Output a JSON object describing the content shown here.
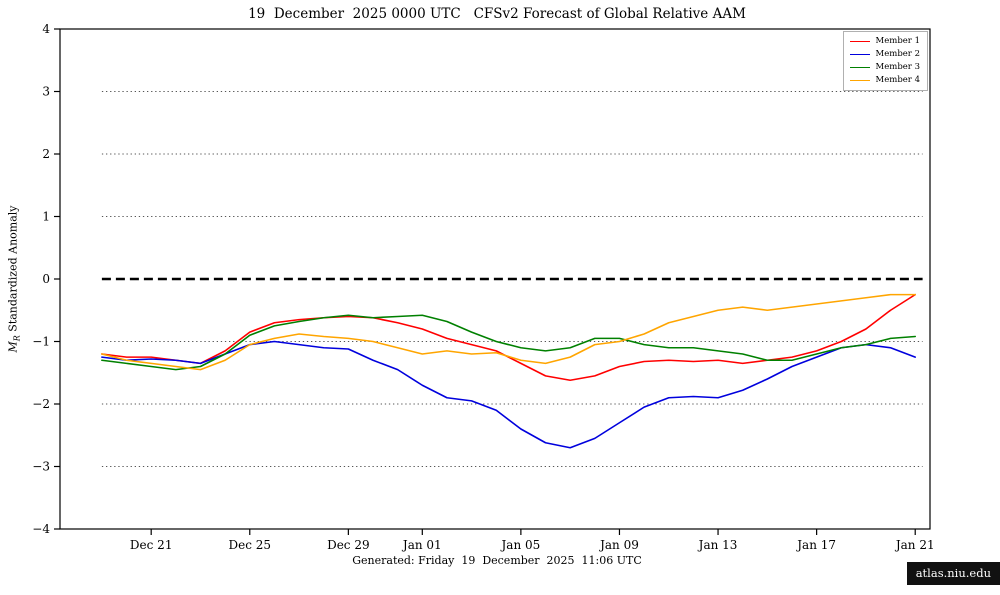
{
  "title": "19  December  2025 0000 UTC   CFSv2 Forecast of Global Relative AAM",
  "ylabel": {
    "prefix": "M",
    "sub": "R",
    "rest": " Standardized Anomaly"
  },
  "footer": "Generated: Friday  19  December  2025  11:06 UTC",
  "badge": "atlas.niu.edu",
  "chart_data": {
    "type": "line",
    "title": "19 December 2025 0000 UTC CFSv2 Forecast of Global Relative AAM",
    "xlabel": "",
    "ylabel": "M_R Standardized Anomaly",
    "ylim": [
      -4,
      4
    ],
    "x_unit": "forecast day (0 = Dec 19)",
    "x_data_range": [
      0,
      33.3
    ],
    "grid": "dotted horizontal at integer anomaly values",
    "legend_position": "upper right",
    "grid_y": [
      -3,
      -2,
      -1,
      1,
      2,
      3
    ],
    "zero_line": 0,
    "y_ticks": [
      {
        "value": -4,
        "label": "−4"
      },
      {
        "value": -3,
        "label": "−3"
      },
      {
        "value": -2,
        "label": "−2"
      },
      {
        "value": -1,
        "label": "−1"
      },
      {
        "value": 0,
        "label": "0"
      },
      {
        "value": 1,
        "label": "1"
      },
      {
        "value": 2,
        "label": "2"
      },
      {
        "value": 3,
        "label": "3"
      },
      {
        "value": 4,
        "label": "4"
      }
    ],
    "x_ticks": [
      {
        "index": 2,
        "label": "Dec 21"
      },
      {
        "index": 6,
        "label": "Dec 25"
      },
      {
        "index": 10,
        "label": "Dec 29"
      },
      {
        "index": 13,
        "label": "Jan 01"
      },
      {
        "index": 17,
        "label": "Jan 05"
      },
      {
        "index": 21,
        "label": "Jan 09"
      },
      {
        "index": 25,
        "label": "Jan 13"
      },
      {
        "index": 29,
        "label": "Jan 17"
      },
      {
        "index": 33,
        "label": "Jan 21"
      }
    ],
    "series": [
      {
        "name": "Member 1",
        "color": "#ff0000",
        "values": [
          -1.2,
          -1.25,
          -1.25,
          -1.3,
          -1.35,
          -1.15,
          -0.85,
          -0.7,
          -0.65,
          -0.62,
          -0.6,
          -0.62,
          -0.7,
          -0.8,
          -0.95,
          -1.05,
          -1.15,
          -1.35,
          -1.55,
          -1.62,
          -1.55,
          -1.4,
          -1.32,
          -1.3,
          -1.32,
          -1.3,
          -1.35,
          -1.3,
          -1.25,
          -1.15,
          -1.0,
          -0.8,
          -0.5,
          -0.25
        ]
      },
      {
        "name": "Member 2",
        "color": "#0000dd",
        "values": [
          -1.25,
          -1.3,
          -1.28,
          -1.3,
          -1.35,
          -1.2,
          -1.05,
          -1.0,
          -1.05,
          -1.1,
          -1.12,
          -1.3,
          -1.45,
          -1.7,
          -1.9,
          -1.95,
          -2.1,
          -2.4,
          -2.62,
          -2.7,
          -2.55,
          -2.3,
          -2.05,
          -1.9,
          -1.88,
          -1.9,
          -1.78,
          -1.6,
          -1.4,
          -1.25,
          -1.1,
          -1.05,
          -1.1,
          -1.25
        ]
      },
      {
        "name": "Member 3",
        "color": "#008000",
        "values": [
          -1.3,
          -1.35,
          -1.4,
          -1.45,
          -1.4,
          -1.2,
          -0.9,
          -0.75,
          -0.68,
          -0.62,
          -0.58,
          -0.62,
          -0.6,
          -0.58,
          -0.68,
          -0.85,
          -1.0,
          -1.1,
          -1.15,
          -1.1,
          -0.95,
          -0.95,
          -1.05,
          -1.1,
          -1.1,
          -1.15,
          -1.2,
          -1.3,
          -1.3,
          -1.2,
          -1.1,
          -1.05,
          -0.95,
          -0.92
        ]
      },
      {
        "name": "Member 4",
        "color": "#ffa500",
        "values": [
          -1.2,
          -1.3,
          -1.35,
          -1.4,
          -1.45,
          -1.3,
          -1.05,
          -0.95,
          -0.88,
          -0.92,
          -0.95,
          -1.0,
          -1.1,
          -1.2,
          -1.15,
          -1.2,
          -1.18,
          -1.3,
          -1.35,
          -1.25,
          -1.05,
          -1.0,
          -0.88,
          -0.7,
          -0.6,
          -0.5,
          -0.45,
          -0.5,
          -0.45,
          -0.4,
          -0.35,
          -0.3,
          -0.25,
          -0.25
        ]
      }
    ]
  }
}
